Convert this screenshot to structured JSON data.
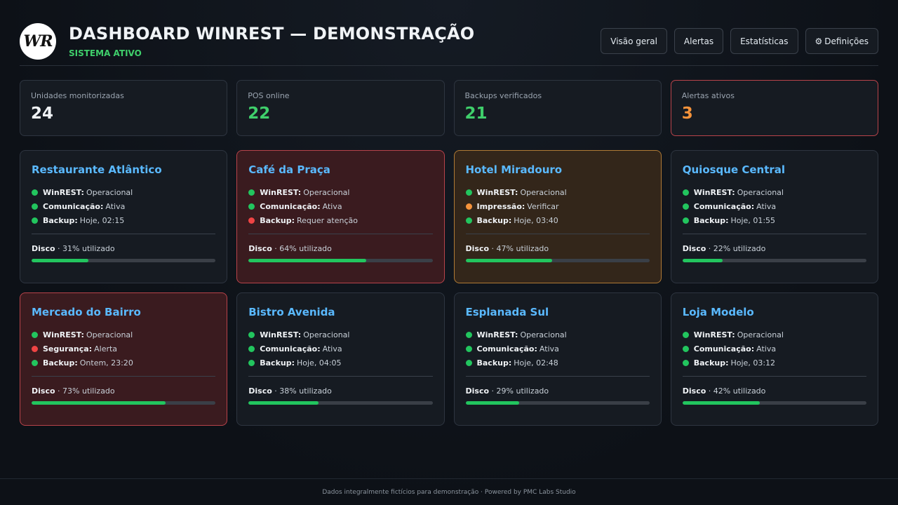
{
  "header": {
    "logo_text": "WR",
    "title": "DASHBOARD WINREST — DEMONSTRAÇÃO",
    "subtitle": "SISTEMA ATIVO",
    "subtitle_color": "#3fcf6b",
    "nav": [
      {
        "label": "Visão geral",
        "icon": ""
      },
      {
        "label": "Alertas",
        "icon": ""
      },
      {
        "label": "Estatísticas",
        "icon": ""
      },
      {
        "label": "Definições",
        "icon": "⚙"
      }
    ]
  },
  "stats": [
    {
      "label": "Unidades monitorizadas",
      "value": "24",
      "color": "#f0f3f6",
      "alert": false
    },
    {
      "label": "POS online",
      "value": "22",
      "color": "#3fcf6b",
      "alert": false
    },
    {
      "label": "Backups verificados",
      "value": "21",
      "color": "#3fcf6b",
      "alert": false
    },
    {
      "label": "Alertas ativos",
      "value": "3",
      "color": "#f5933b",
      "alert": true
    }
  ],
  "status_colors": {
    "ok": "#22c55e",
    "warn": "#f5933b",
    "error": "#ef4444"
  },
  "disk_label": "Disco",
  "cards": [
    {
      "name": "Restaurante Atlântico",
      "state": "normal",
      "statuses": [
        {
          "key": "WinREST:",
          "value": "Operacional",
          "level": "ok"
        },
        {
          "key": "Comunicação:",
          "value": "Ativa",
          "level": "ok"
        },
        {
          "key": "Backup:",
          "value": "Hoje, 02:15",
          "level": "ok"
        }
      ],
      "disk_text": " · 31% utilizado",
      "disk_pct": 31
    },
    {
      "name": "Café da Praça",
      "state": "danger",
      "statuses": [
        {
          "key": "WinREST:",
          "value": "Operacional",
          "level": "ok"
        },
        {
          "key": "Comunicação:",
          "value": "Ativa",
          "level": "ok"
        },
        {
          "key": "Backup:",
          "value": "Requer atenção",
          "level": "error"
        }
      ],
      "disk_text": " · 64% utilizado",
      "disk_pct": 64
    },
    {
      "name": "Hotel Miradouro",
      "state": "warning",
      "statuses": [
        {
          "key": "WinREST:",
          "value": "Operacional",
          "level": "ok"
        },
        {
          "key": "Impressão:",
          "value": "Verificar",
          "level": "warn"
        },
        {
          "key": "Backup:",
          "value": "Hoje, 03:40",
          "level": "ok"
        }
      ],
      "disk_text": " · 47% utilizado",
      "disk_pct": 47
    },
    {
      "name": "Quiosque Central",
      "state": "normal",
      "statuses": [
        {
          "key": "WinREST:",
          "value": "Operacional",
          "level": "ok"
        },
        {
          "key": "Comunicação:",
          "value": "Ativa",
          "level": "ok"
        },
        {
          "key": "Backup:",
          "value": "Hoje, 01:55",
          "level": "ok"
        }
      ],
      "disk_text": " · 22% utilizado",
      "disk_pct": 22
    },
    {
      "name": "Mercado do Bairro",
      "state": "danger",
      "statuses": [
        {
          "key": "WinREST:",
          "value": "Operacional",
          "level": "ok"
        },
        {
          "key": "Segurança:",
          "value": "Alerta",
          "level": "error"
        },
        {
          "key": "Backup:",
          "value": "Ontem, 23:20",
          "level": "ok"
        }
      ],
      "disk_text": " · 73% utilizado",
      "disk_pct": 73
    },
    {
      "name": "Bistro Avenida",
      "state": "normal",
      "statuses": [
        {
          "key": "WinREST:",
          "value": "Operacional",
          "level": "ok"
        },
        {
          "key": "Comunicação:",
          "value": "Ativa",
          "level": "ok"
        },
        {
          "key": "Backup:",
          "value": "Hoje, 04:05",
          "level": "ok"
        }
      ],
      "disk_text": " · 38% utilizado",
      "disk_pct": 38
    },
    {
      "name": "Esplanada Sul",
      "state": "normal",
      "statuses": [
        {
          "key": "WinREST:",
          "value": "Operacional",
          "level": "ok"
        },
        {
          "key": "Comunicação:",
          "value": "Ativa",
          "level": "ok"
        },
        {
          "key": "Backup:",
          "value": "Hoje, 02:48",
          "level": "ok"
        }
      ],
      "disk_text": " · 29% utilizado",
      "disk_pct": 29
    },
    {
      "name": "Loja Modelo",
      "state": "normal",
      "statuses": [
        {
          "key": "WinREST:",
          "value": "Operacional",
          "level": "ok"
        },
        {
          "key": "Comunicação:",
          "value": "Ativa",
          "level": "ok"
        },
        {
          "key": "Backup:",
          "value": "Hoje, 03:12",
          "level": "ok"
        }
      ],
      "disk_text": " · 42% utilizado",
      "disk_pct": 42
    }
  ],
  "footer": {
    "text": "Dados integralmente fictícios para demonstração · Powered by PMC Labs Studio"
  }
}
